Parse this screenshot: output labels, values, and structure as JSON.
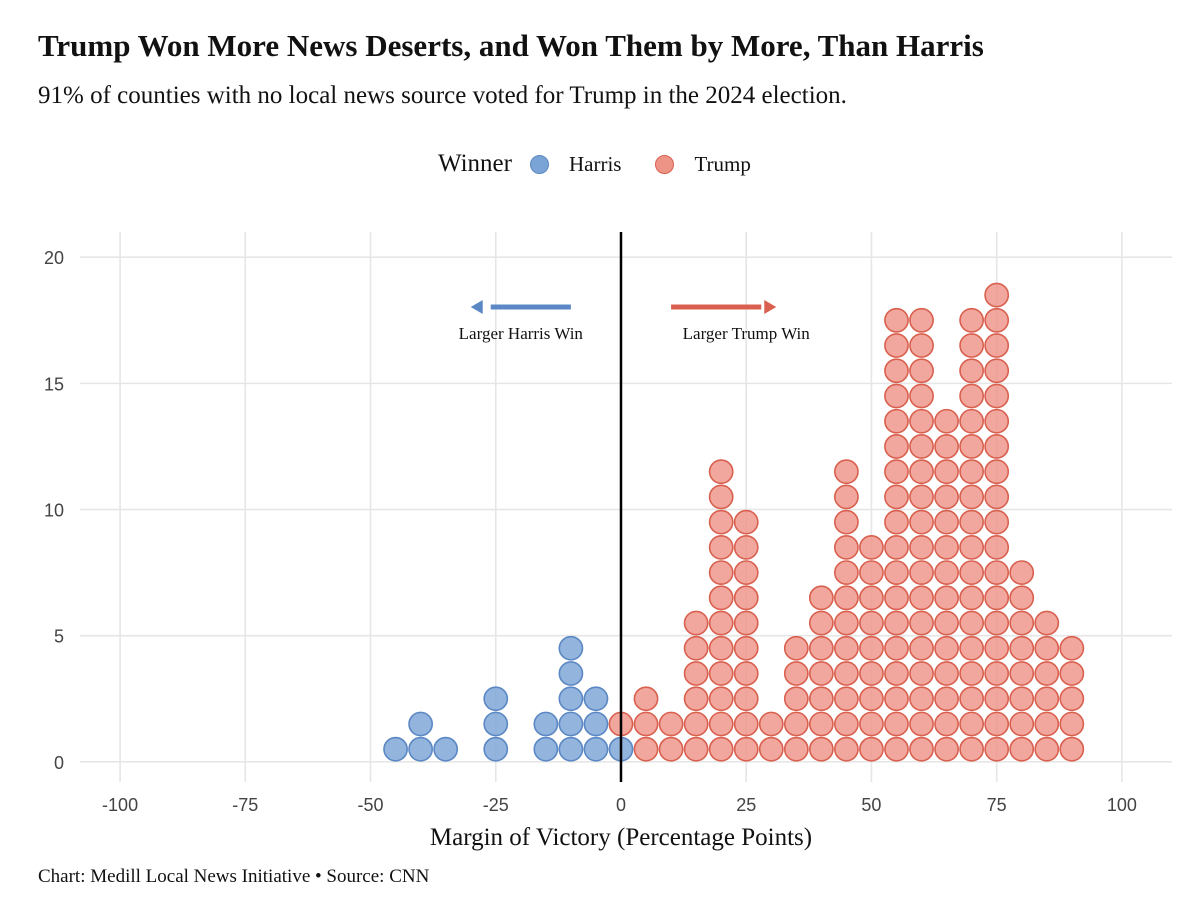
{
  "chart_data": {
    "type": "scatter",
    "subtype": "dot-plot",
    "title": "Trump Won More News Deserts, and Won Them by More, Than Harris",
    "subtitle": "91% of counties with no local news source voted for Trump in the 2024 election.",
    "caption": "Chart: Medill Local News Initiative • Source: CNN",
    "xlabel": "Margin of Victory (Percentage Points)",
    "ylabel": "",
    "xlim": [
      -108,
      110
    ],
    "ylim": [
      -0.8,
      21
    ],
    "x_ticks": [
      "-100",
      "-75",
      "-50",
      "-25",
      "0",
      "25",
      "50",
      "75",
      "100"
    ],
    "y_ticks": [
      "0",
      "5",
      "10",
      "15",
      "20"
    ],
    "grid": true,
    "legend": {
      "title": "Winner",
      "position": "top",
      "entries": [
        "Harris",
        "Trump"
      ]
    },
    "annotations": {
      "harris_arrow_label": "Larger Harris Win",
      "trump_arrow_label": "Larger Trump Win"
    },
    "series": [
      {
        "name": "Harris",
        "color": "#7ba4d6",
        "stroke": "#5b88c4",
        "bins": [
          {
            "x": -45,
            "count": 1
          },
          {
            "x": -40,
            "count": 2
          },
          {
            "x": -35,
            "count": 1
          },
          {
            "x": -25,
            "count": 3
          },
          {
            "x": -15,
            "count": 2
          },
          {
            "x": -10,
            "count": 5
          },
          {
            "x": -5,
            "count": 3
          },
          {
            "x": 0,
            "count": 1
          }
        ]
      },
      {
        "name": "Trump",
        "color": "#ee9487",
        "stroke": "#d9604f",
        "bins": [
          {
            "x": 0,
            "count": 1,
            "start": 1
          },
          {
            "x": 5,
            "count": 3
          },
          {
            "x": 10,
            "count": 2
          },
          {
            "x": 15,
            "count": 6
          },
          {
            "x": 20,
            "count": 12
          },
          {
            "x": 25,
            "count": 10
          },
          {
            "x": 30,
            "count": 2
          },
          {
            "x": 35,
            "count": 5
          },
          {
            "x": 40,
            "count": 7
          },
          {
            "x": 45,
            "count": 12
          },
          {
            "x": 50,
            "count": 9
          },
          {
            "x": 55,
            "count": 18
          },
          {
            "x": 60,
            "count": 18
          },
          {
            "x": 65,
            "count": 14
          },
          {
            "x": 70,
            "count": 18
          },
          {
            "x": 75,
            "count": 19
          },
          {
            "x": 80,
            "count": 8
          },
          {
            "x": 85,
            "count": 6
          },
          {
            "x": 90,
            "count": 5
          }
        ]
      }
    ]
  }
}
